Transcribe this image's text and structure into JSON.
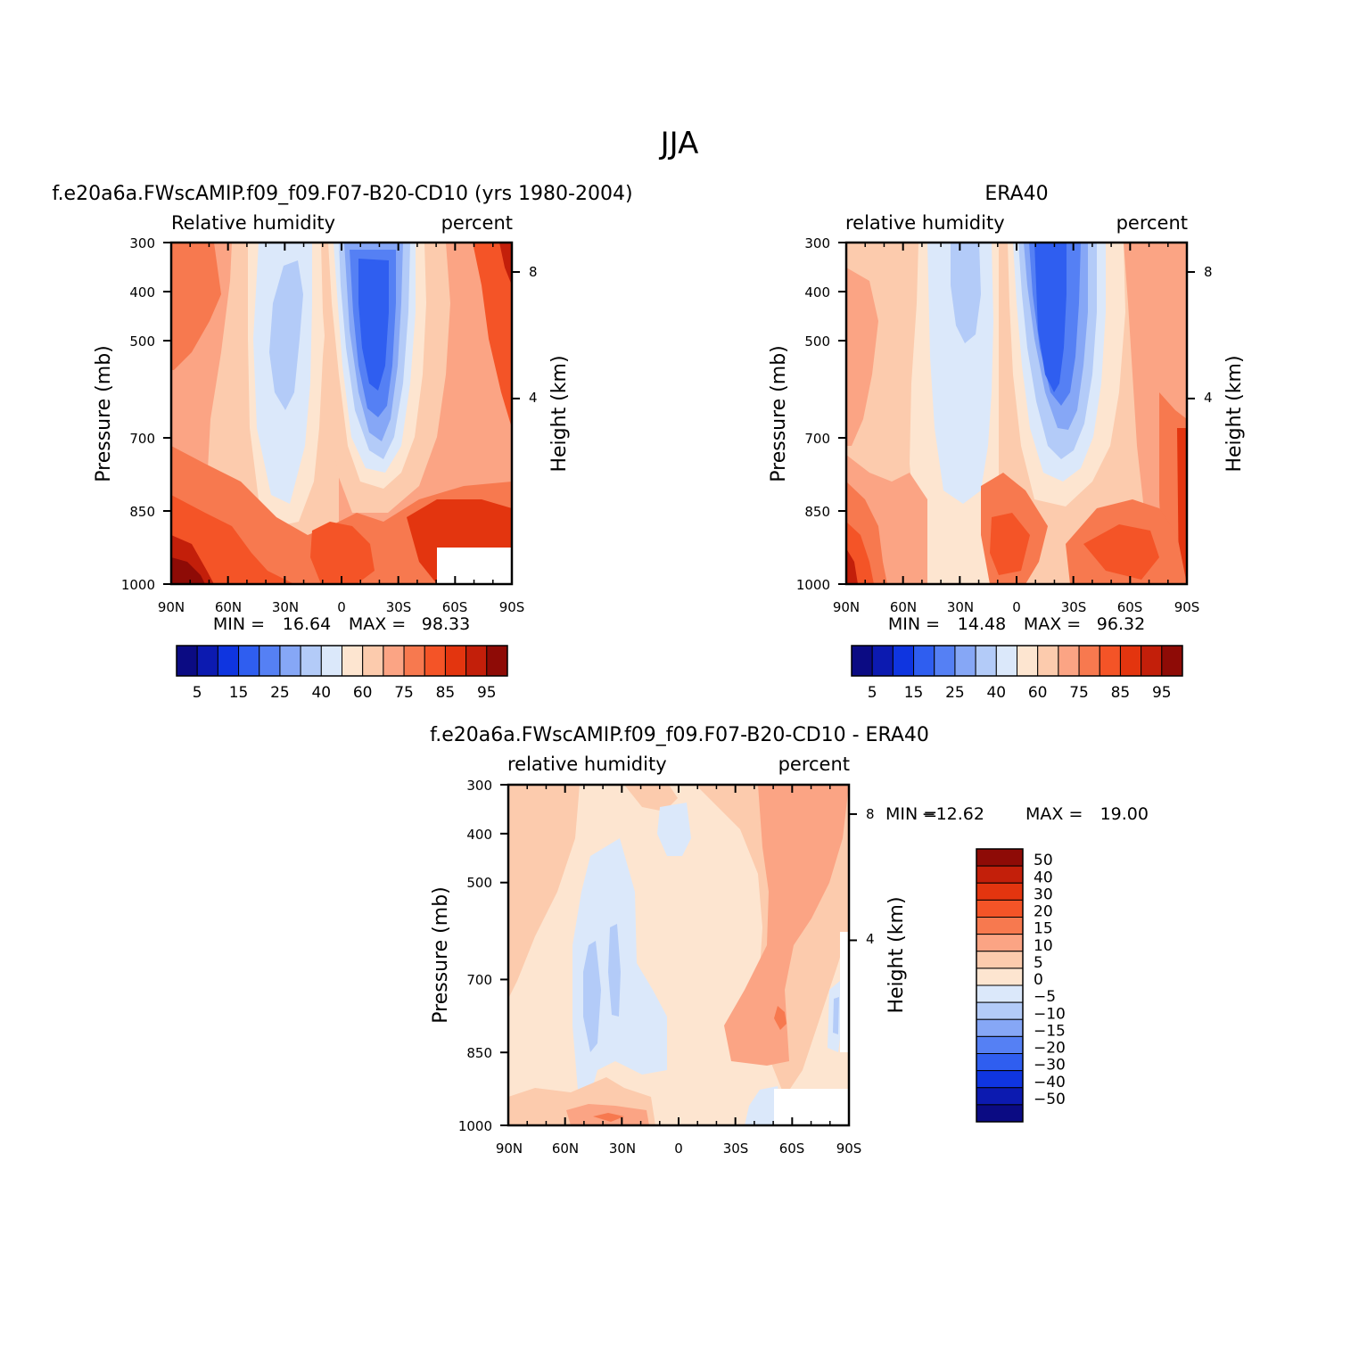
{
  "figure": {
    "title": "JJA"
  },
  "colors": {
    "ramp": [
      "#0b0b83",
      "#0c1ab0",
      "#0f35e0",
      "#2f5ef0",
      "#5580f4",
      "#86a7f6",
      "#b3cbf8",
      "#dbe8fa",
      "#fde5d0",
      "#fccbad",
      "#fba484",
      "#f7794f",
      "#f45427",
      "#e3350f",
      "#c31f0a",
      "#8e0b06"
    ]
  },
  "chart_data": [
    {
      "type": "contour",
      "id": "model",
      "title": "f.e20a6a.FWscAMIP.f09_f09.F07-B20-CD10 (yrs 1980-2004)",
      "left_label": "Relative humidity",
      "right_label": "percent",
      "ylabel": "Pressure (mb)",
      "y2label": "Height (km)",
      "x_ticks": [
        "90N",
        "60N",
        "30N",
        "0",
        "30S",
        "60S",
        "90S"
      ],
      "y_ticks": [
        "300",
        "400",
        "500",
        "700",
        "850",
        "1000"
      ],
      "y2_ticks": [
        "8",
        "4"
      ],
      "min_label": "MIN =",
      "min": "16.64",
      "max_label": "MAX =",
      "max": "98.33",
      "levels": [
        "5",
        "15",
        "25",
        "40",
        "60",
        "75",
        "85",
        "95"
      ]
    },
    {
      "type": "contour",
      "id": "obs",
      "title": "ERA40",
      "left_label": "relative humidity",
      "right_label": "percent",
      "ylabel": "Pressure (mb)",
      "y2label": "Height (km)",
      "x_ticks": [
        "90N",
        "60N",
        "30N",
        "0",
        "30S",
        "60S",
        "90S"
      ],
      "y_ticks": [
        "300",
        "400",
        "500",
        "700",
        "850",
        "1000"
      ],
      "y2_ticks": [
        "8",
        "4"
      ],
      "min_label": "MIN =",
      "min": "14.48",
      "max_label": "MAX =",
      "max": "96.32",
      "levels": [
        "5",
        "15",
        "25",
        "40",
        "60",
        "75",
        "85",
        "95"
      ]
    },
    {
      "type": "contour",
      "id": "diff",
      "title": "f.e20a6a.FWscAMIP.f09_f09.F07-B20-CD10 - ERA40",
      "left_label": "relative humidity",
      "right_label": "percent",
      "ylabel": "Pressure (mb)",
      "y2label": "Height (km)",
      "x_ticks": [
        "90N",
        "60N",
        "30N",
        "0",
        "30S",
        "60S",
        "90S"
      ],
      "y_ticks": [
        "300",
        "400",
        "500",
        "700",
        "850",
        "1000"
      ],
      "y2_ticks": [
        "8",
        "4"
      ],
      "min_label": "MIN =",
      "min": "-12.62",
      "max_label": "MAX =",
      "max": "19.00",
      "levels": [
        "50",
        "40",
        "30",
        "20",
        "15",
        "10",
        "5",
        "0",
        "-5",
        "-10",
        "-15",
        "-20",
        "-30",
        "-40",
        "-50"
      ]
    }
  ]
}
